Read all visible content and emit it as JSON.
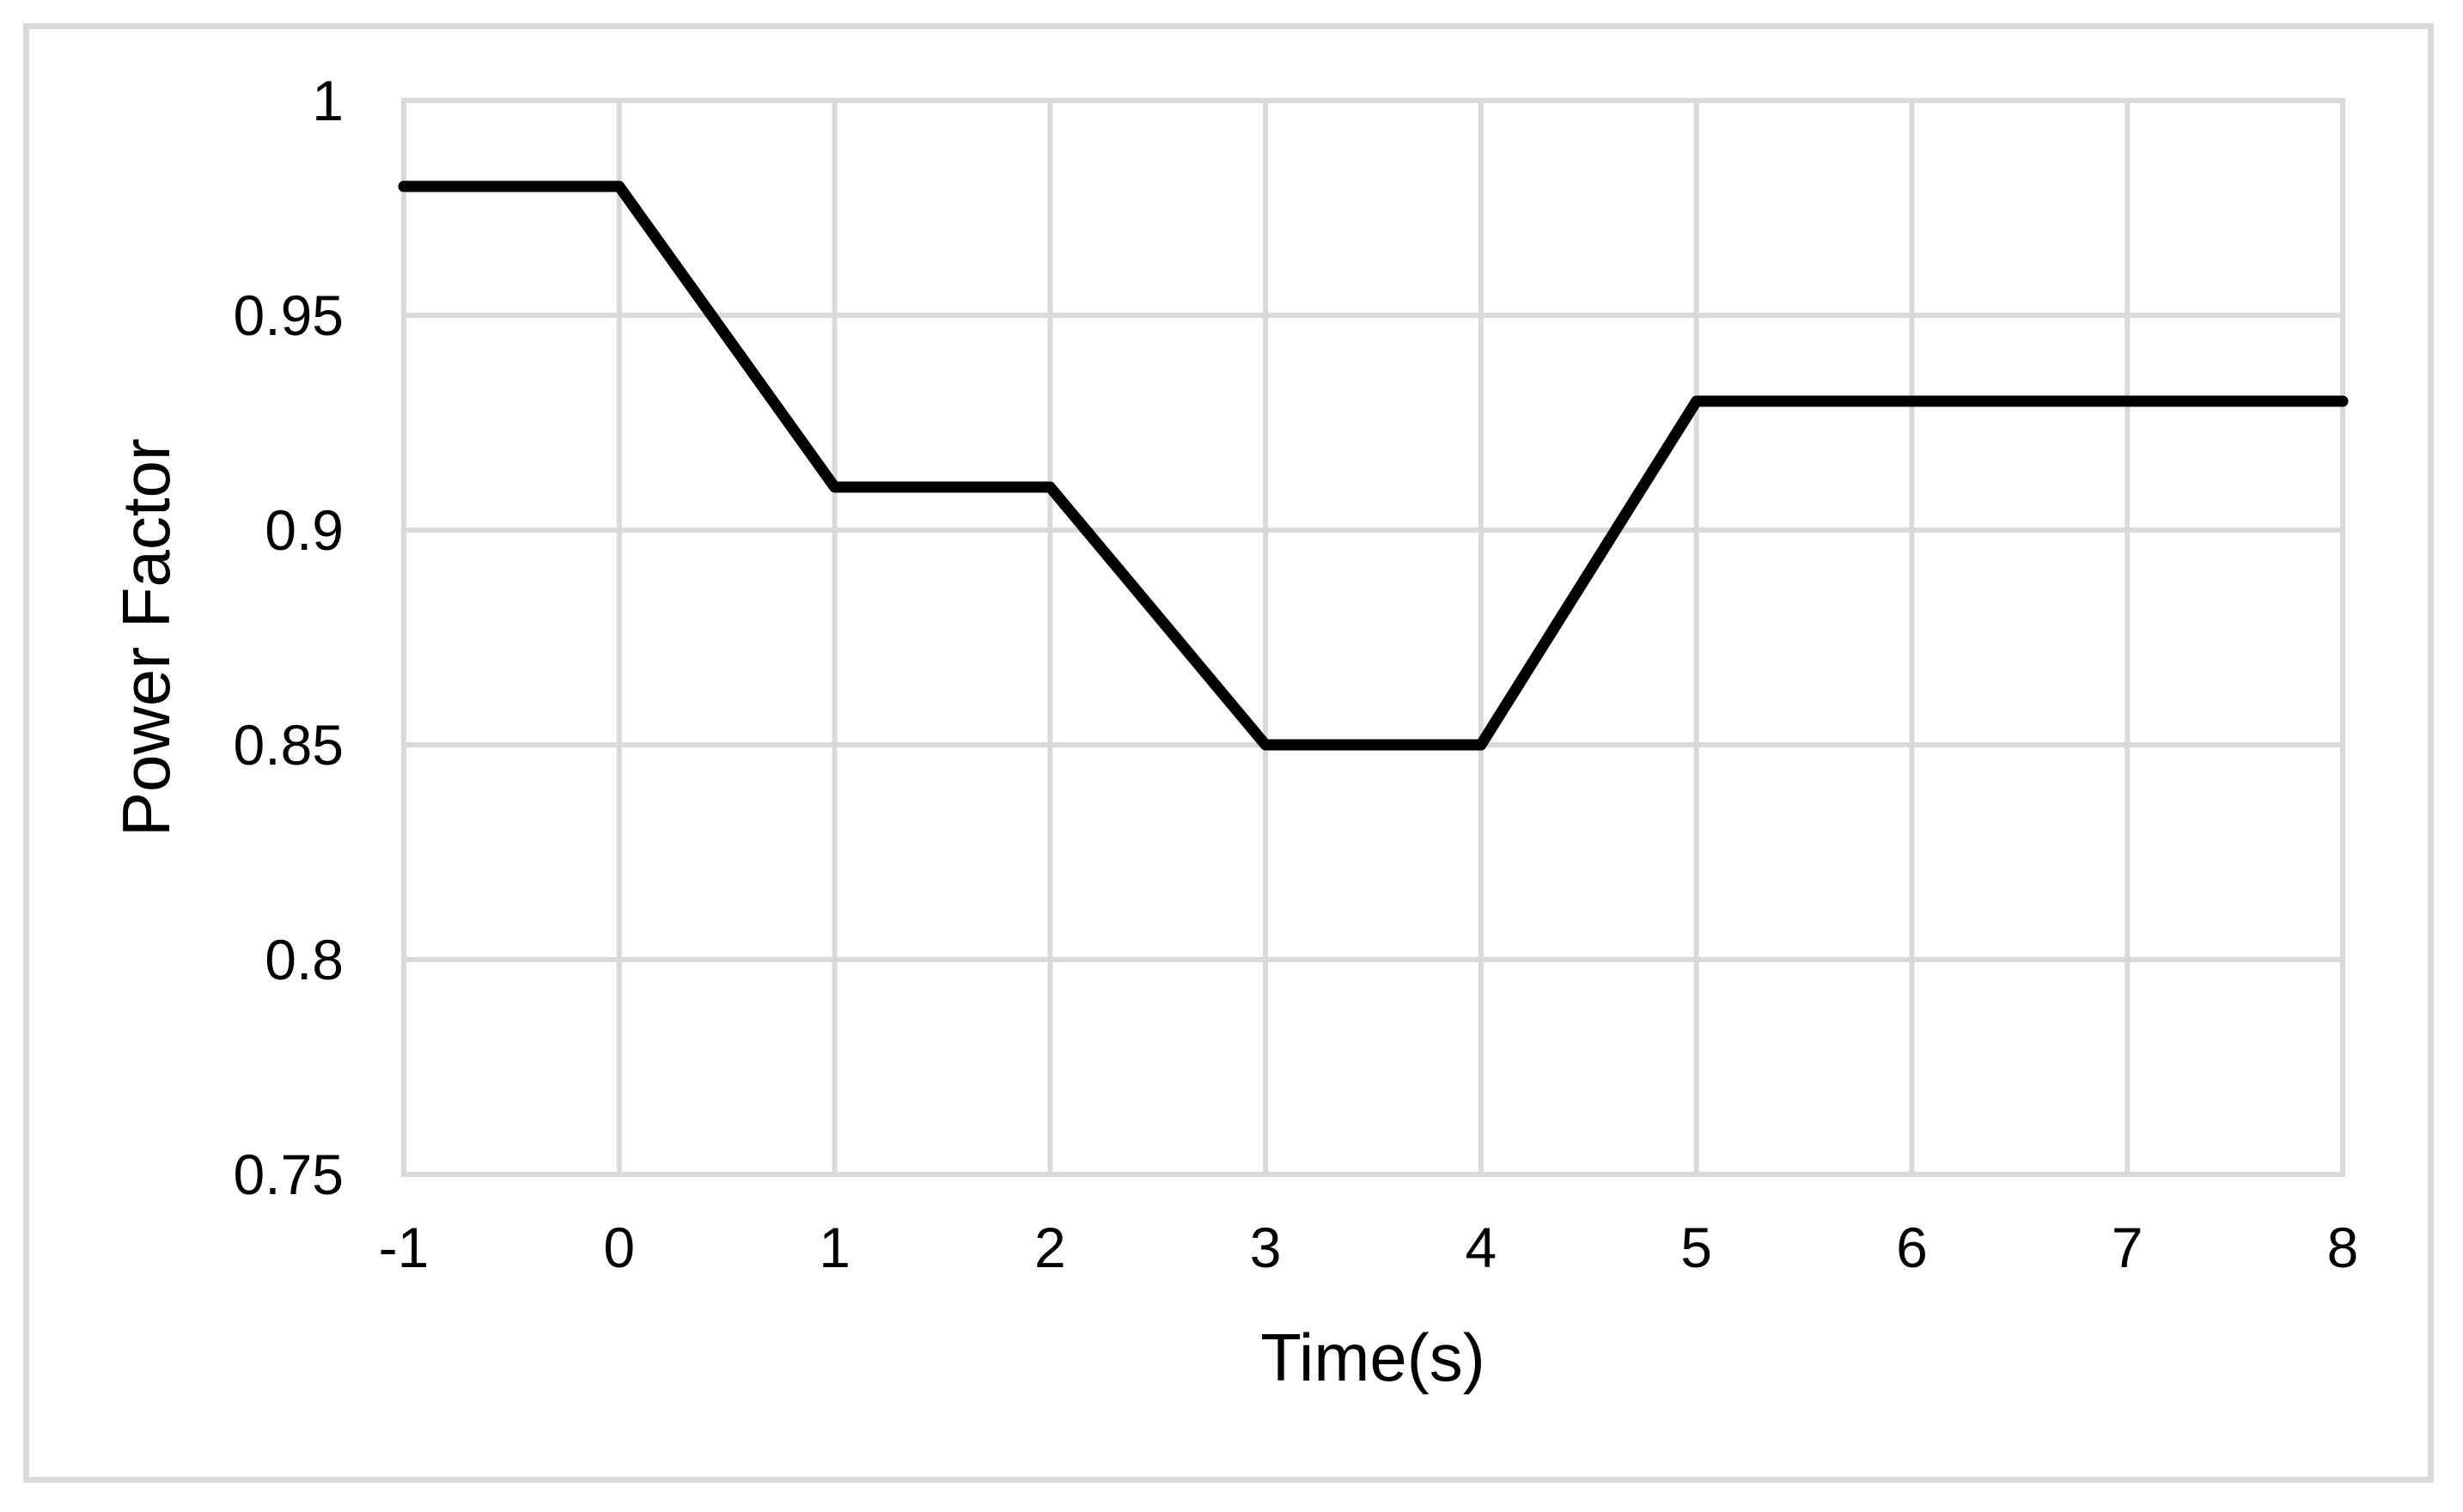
{
  "figure": {
    "background_color": "#ffffff",
    "border_color": "#d9d9d9"
  },
  "chart_data": {
    "type": "line",
    "title": "",
    "xlabel": "Time(s)",
    "ylabel": "Power Factor",
    "xlim": [
      -1,
      8
    ],
    "ylim": [
      0.75,
      1
    ],
    "x_ticks": [
      -1,
      0,
      1,
      2,
      3,
      4,
      5,
      6,
      7,
      8
    ],
    "x_tick_labels": [
      "-1",
      "0",
      "1",
      "2",
      "3",
      "4",
      "5",
      "6",
      "7",
      "8"
    ],
    "y_ticks": [
      1,
      0.95,
      0.9,
      0.85,
      0.8,
      0.75
    ],
    "y_tick_labels": [
      "1",
      "0.95",
      "0.9",
      "0.85",
      "0.8",
      "0.75"
    ],
    "grid": true,
    "grid_color": "#d9d9d9",
    "legend_position": "none",
    "series": [
      {
        "name": "Power Factor",
        "color": "#000000",
        "x": [
          -1,
          0,
          1,
          2,
          3,
          4,
          5,
          8
        ],
        "y": [
          0.98,
          0.98,
          0.91,
          0.91,
          0.85,
          0.85,
          0.93,
          0.93
        ]
      }
    ]
  }
}
